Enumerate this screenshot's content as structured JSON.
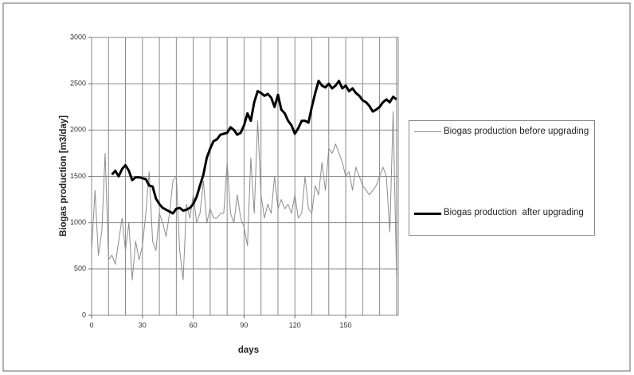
{
  "chart_data": {
    "type": "line",
    "y_label": "Biogas production  [m3/day]",
    "x_label": "days",
    "xlim": [
      0,
      181
    ],
    "ylim": [
      0,
      3000
    ],
    "xticks": [
      0,
      30,
      60,
      90,
      120,
      150
    ],
    "x_grid_lines": [
      10,
      20,
      30,
      40,
      50,
      60,
      70,
      80,
      90,
      100,
      110,
      120,
      130,
      140,
      150,
      160,
      170,
      180
    ],
    "yticks": [
      0,
      500,
      1000,
      1500,
      2000,
      2500,
      3000
    ],
    "grid": true,
    "series": [
      {
        "name": "Biogas production before upgrading",
        "color": "#8c8c8c",
        "width": 1,
        "x": [
          0,
          2,
          4,
          6,
          8,
          10,
          12,
          14,
          16,
          18,
          20,
          22,
          24,
          26,
          28,
          30,
          32,
          34,
          36,
          38,
          40,
          42,
          44,
          46,
          48,
          50,
          52,
          54,
          56,
          58,
          60,
          62,
          64,
          66,
          68,
          70,
          72,
          74,
          76,
          78,
          80,
          82,
          84,
          86,
          88,
          90,
          92,
          94,
          96,
          98,
          100,
          102,
          104,
          106,
          108,
          110,
          112,
          114,
          116,
          118,
          120,
          122,
          124,
          126,
          128,
          130,
          132,
          134,
          136,
          138,
          140,
          142,
          144,
          146,
          148,
          150,
          152,
          154,
          156,
          158,
          160,
          162,
          164,
          166,
          168,
          170,
          172,
          174,
          176,
          178,
          180
        ],
        "values": [
          700,
          1350,
          650,
          900,
          1750,
          600,
          650,
          550,
          800,
          1050,
          700,
          1000,
          380,
          800,
          600,
          750,
          1100,
          1550,
          800,
          700,
          1100,
          1000,
          850,
          1100,
          1450,
          1500,
          700,
          380,
          1200,
          1050,
          1300,
          1000,
          1100,
          1450,
          1000,
          1150,
          1050,
          1050,
          1100,
          1100,
          1650,
          1100,
          1000,
          1300,
          1050,
          950,
          750,
          1700,
          1100,
          2100,
          1300,
          1050,
          1200,
          1100,
          1500,
          1150,
          1250,
          1150,
          1200,
          1100,
          1300,
          1050,
          1100,
          1500,
          1150,
          1100,
          1400,
          1300,
          1650,
          1350,
          1800,
          1750,
          1850,
          1750,
          1650,
          1500,
          1550,
          1350,
          1600,
          1500,
          1400,
          1350,
          1300,
          1350,
          1400,
          1500,
          1600,
          1500,
          900,
          2200,
          420
        ]
      },
      {
        "name": "Biogas production  after upgrading",
        "color": "#000000",
        "width": 3,
        "x": [
          12,
          14,
          16,
          18,
          20,
          22,
          24,
          26,
          28,
          30,
          32,
          34,
          36,
          38,
          40,
          42,
          44,
          46,
          48,
          50,
          52,
          54,
          56,
          58,
          60,
          62,
          64,
          66,
          68,
          70,
          72,
          74,
          76,
          78,
          80,
          82,
          84,
          86,
          88,
          90,
          92,
          94,
          96,
          98,
          100,
          102,
          104,
          106,
          108,
          110,
          112,
          114,
          116,
          118,
          120,
          122,
          124,
          126,
          128,
          130,
          132,
          134,
          136,
          138,
          140,
          142,
          144,
          146,
          148,
          150,
          152,
          154,
          156,
          158,
          160,
          162,
          164,
          166,
          168,
          170,
          172,
          174,
          176,
          178,
          180
        ],
        "values": [
          1520,
          1560,
          1500,
          1580,
          1620,
          1560,
          1460,
          1490,
          1490,
          1480,
          1470,
          1400,
          1390,
          1260,
          1200,
          1160,
          1140,
          1120,
          1100,
          1150,
          1160,
          1130,
          1140,
          1160,
          1200,
          1280,
          1400,
          1520,
          1700,
          1800,
          1880,
          1900,
          1950,
          1960,
          1970,
          2030,
          2000,
          1950,
          1970,
          2050,
          2180,
          2100,
          2300,
          2420,
          2400,
          2370,
          2390,
          2350,
          2250,
          2380,
          2220,
          2180,
          2100,
          2050,
          1960,
          2020,
          2100,
          2100,
          2080,
          2250,
          2400,
          2530,
          2480,
          2460,
          2500,
          2450,
          2480,
          2530,
          2450,
          2480,
          2420,
          2450,
          2400,
          2370,
          2320,
          2300,
          2260,
          2200,
          2220,
          2250,
          2300,
          2330,
          2300,
          2360,
          2330
        ]
      }
    ]
  }
}
